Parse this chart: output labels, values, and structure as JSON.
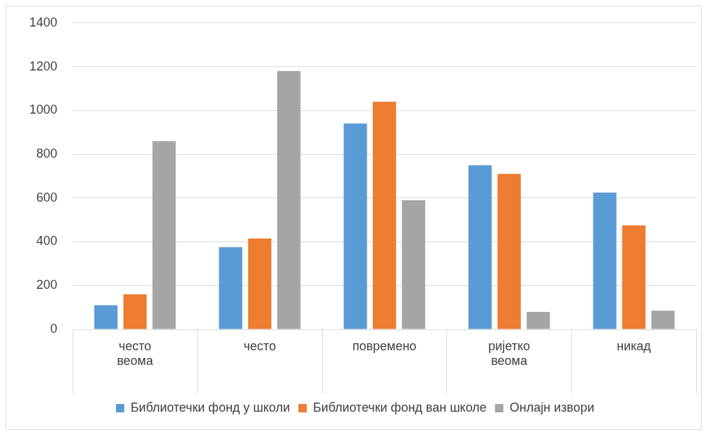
{
  "chart_data": {
    "type": "bar",
    "categories": [
      "често\nвеома",
      "често",
      "повремено",
      "ријетко\nвеома",
      "никад"
    ],
    "series": [
      {
        "name": "Библиотечки фонд у школи",
        "color": "#5b9bd5",
        "values": [
          110,
          375,
          940,
          750,
          625
        ]
      },
      {
        "name": "Библиотечки фонд ван школе",
        "color": "#ed7d31",
        "values": [
          160,
          415,
          1040,
          710,
          475
        ]
      },
      {
        "name": "Онлајн извори",
        "color": "#a5a5a5",
        "values": [
          860,
          1180,
          590,
          80,
          85
        ]
      }
    ],
    "ylim": [
      0,
      1400
    ],
    "yticks": [
      0,
      200,
      400,
      600,
      800,
      1000,
      1200,
      1400
    ],
    "grid": "y",
    "legend": "bottom"
  }
}
